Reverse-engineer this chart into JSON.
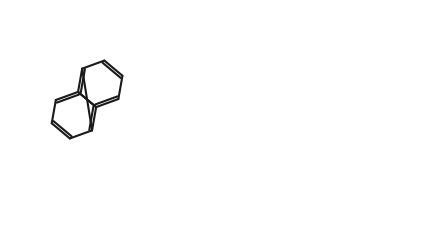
{
  "bg_color": "#ffffff",
  "lc": "#1a1a1a",
  "oc": "#7B3F00",
  "nc": "#1a1a2e",
  "lw": 1.5,
  "figsize": [
    4.32,
    2.42
  ],
  "dpi": 100,
  "xlim": [
    0,
    10
  ],
  "ylim": [
    0,
    5.6
  ]
}
